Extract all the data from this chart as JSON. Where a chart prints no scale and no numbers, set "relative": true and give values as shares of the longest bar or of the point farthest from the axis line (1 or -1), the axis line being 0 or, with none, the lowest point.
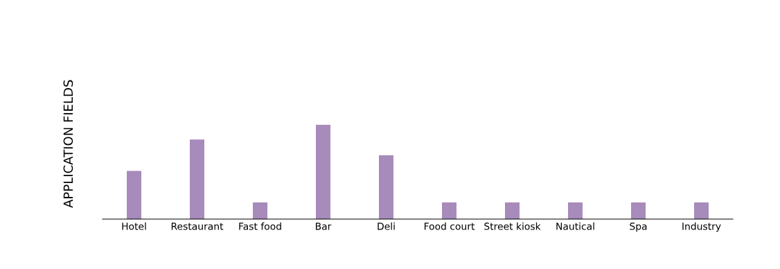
{
  "chart_data": {
    "type": "bar",
    "title": "APPLICATION FIELDS",
    "relative": true,
    "categories": [
      "Hotel",
      "Restaurant",
      "Fast food",
      "Bar",
      "Deli",
      "Food court",
      "Street kiosk",
      "Nautical",
      "Spa",
      "Industry"
    ],
    "series": [
      {
        "color": "#a78bbb",
        "values": [
          0.5,
          0.833,
          0.167,
          1,
          0.667,
          null,
          null,
          null,
          null,
          null
        ]
      },
      {
        "color": "#a78bbb",
        "values": [
          null,
          null,
          null,
          null,
          null,
          0.167,
          0.167,
          0.167,
          0.167,
          0.167
        ]
      }
    ],
    "grid": false,
    "legend": false
  }
}
